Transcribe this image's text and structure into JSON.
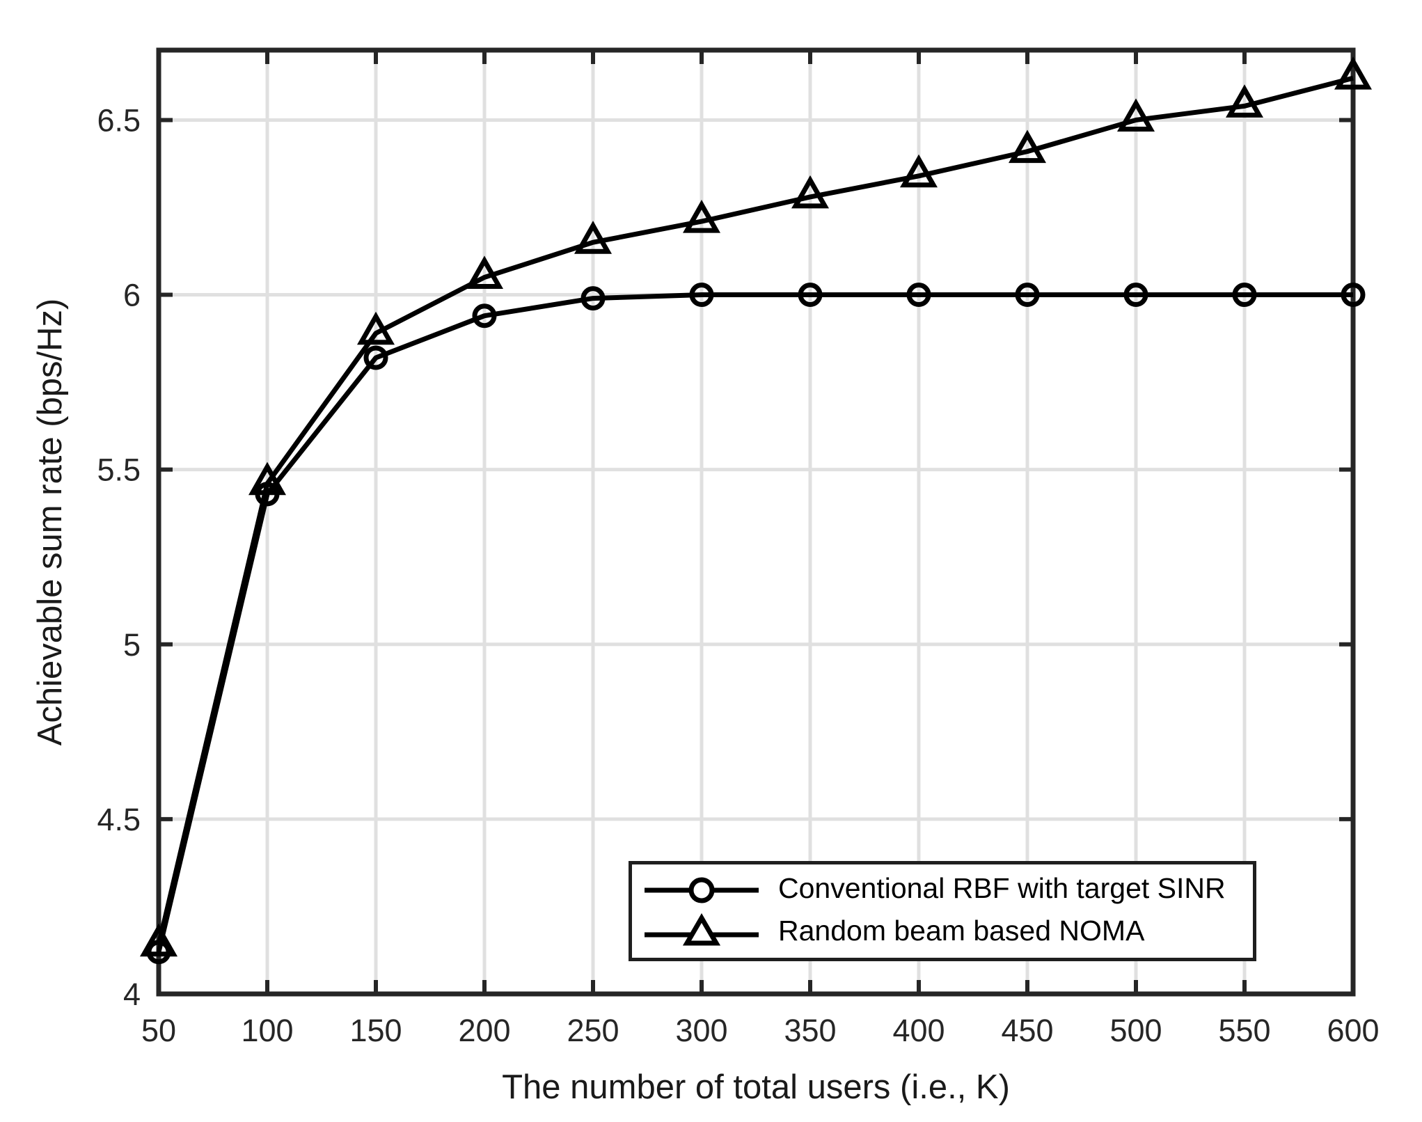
{
  "chart_data": {
    "type": "line",
    "title": "",
    "xlabel": "The number of total users (i.e., K)",
    "ylabel": "Achievable sum rate (bps/Hz)",
    "x": [
      50,
      100,
      150,
      200,
      250,
      300,
      350,
      400,
      450,
      500,
      550,
      600
    ],
    "xticks": [
      50,
      100,
      150,
      200,
      250,
      300,
      350,
      400,
      450,
      500,
      550,
      600
    ],
    "yticks": [
      4,
      4.5,
      5,
      5.5,
      6,
      6.5
    ],
    "xlim": [
      50,
      600
    ],
    "ylim": [
      4,
      6.7
    ],
    "grid": true,
    "legend_position": "lower-right-inside",
    "series": [
      {
        "name": "Conventional RBF with target SINR",
        "marker": "circle",
        "values": [
          4.12,
          5.43,
          5.82,
          5.94,
          5.99,
          6.0,
          6.0,
          6.0,
          6.0,
          6.0,
          6.0,
          6.0
        ]
      },
      {
        "name": "Random beam based NOMA",
        "marker": "triangle",
        "values": [
          4.14,
          5.46,
          5.89,
          6.05,
          6.15,
          6.21,
          6.28,
          6.34,
          6.41,
          6.5,
          6.54,
          6.62
        ]
      }
    ],
    "colors": {
      "line": "#000000",
      "axis": "#262626",
      "grid": "#e0e0e0",
      "background": "#ffffff"
    }
  }
}
